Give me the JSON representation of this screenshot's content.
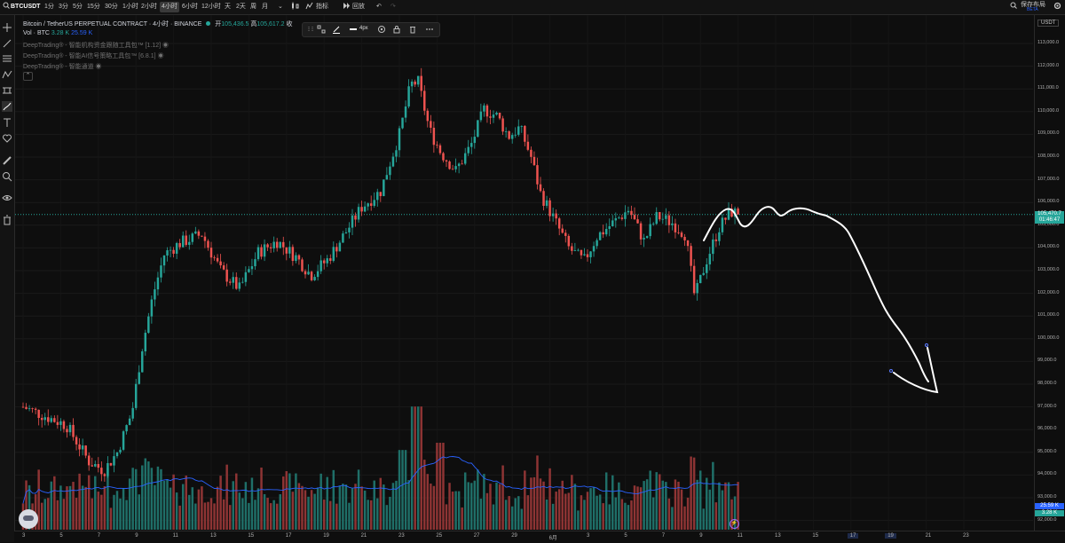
{
  "topbar": {
    "symbol": "BTCUSDT",
    "intervals": [
      "1分",
      "3分",
      "5分",
      "15分",
      "30分",
      "1小时",
      "2小时",
      "4小时",
      "6小时",
      "12小时",
      "天",
      "2天",
      "周",
      "月"
    ],
    "active_interval": "4小时",
    "indicators_label": "指标",
    "replay_label": "回放",
    "save_label": "保存布局",
    "save_sub": "BETA"
  },
  "legend": {
    "title": "Bitcoin / TetherUS PERPETUAL CONTRACT · 4小时 · BINANCE",
    "open_label": "开",
    "open_value": "105,436.5",
    "high_label": "高",
    "high_value": "105,617.2",
    "close_label": "收",
    "vol_label": "Vol · BTC",
    "vol_value_1": "3.28 K",
    "vol_value_2": "25.59 K",
    "ind1": "DeepTrading® - 智能机构资金跟随工具包™ [1.12]",
    "ind2": "DeepTrading® - 智能AI信号策略工具包™ [6.8.1]",
    "ind3": "DeepTrading® - 智能通道"
  },
  "drawbar": {
    "width_label": "4px"
  },
  "right_axis": {
    "currency": "USDT"
  },
  "badges": {
    "price": "105,470.7",
    "countdown": "01:46:47",
    "vol1": "25.59 K",
    "vol2": "3.28 K"
  },
  "colors": {
    "up": "#26a69a",
    "down": "#ef5350",
    "bg": "#0e0e0e",
    "drawing": "#ffffff"
  },
  "chart_data": {
    "type": "candlestick",
    "y_ticks": [
      92000,
      93000,
      94000,
      95000,
      96000,
      97000,
      98000,
      99000,
      100000,
      101000,
      102000,
      103000,
      104000,
      105000,
      106000,
      107000,
      108000,
      109000,
      110000,
      111000,
      112000,
      113000
    ],
    "y_tick_labels": [
      "92,000.0",
      "93,000.0",
      "94,000.0",
      "95,000.0",
      "96,000.0",
      "97,000.0",
      "98,000.0",
      "99,000.0",
      "100,000.0",
      "101,000.0",
      "102,000.0",
      "103,000.0",
      "104,000.0",
      "105,000.0",
      "106,000.0",
      "107,000.0",
      "108,000.0",
      "109,000.0",
      "110,000.0",
      "111,000.0",
      "112,000.0",
      "113,000.0"
    ],
    "x_tick_labels": [
      "3",
      "5",
      "7",
      "9",
      "11",
      "13",
      "15",
      "17",
      "19",
      "21",
      "23",
      "25",
      "27",
      "29",
      "6月",
      "3",
      "5",
      "7",
      "9",
      "11",
      "13",
      "15",
      "17",
      "19",
      "21",
      "23"
    ],
    "highlight_x_labels": [
      "17",
      "19"
    ],
    "highlight_y_range": [
      97000,
      99800
    ],
    "last_price": 105470.7,
    "ylim": [
      91600,
      113800
    ],
    "candles_per_day": 6,
    "days_shown": 62.5,
    "key_levels": [
      {
        "day": 0,
        "price": 97000
      },
      {
        "day": 2.3,
        "price": 96200
      },
      {
        "day": 3.5,
        "price": 94600
      },
      {
        "day": 4.3,
        "price": 94200
      },
      {
        "day": 5.0,
        "price": 95000
      },
      {
        "day": 5.8,
        "price": 96800
      },
      {
        "day": 6.3,
        "price": 99500
      },
      {
        "day": 6.9,
        "price": 101900
      },
      {
        "day": 7.5,
        "price": 103700
      },
      {
        "day": 8.3,
        "price": 104200
      },
      {
        "day": 9.5,
        "price": 104600
      },
      {
        "day": 10.5,
        "price": 103000
      },
      {
        "day": 11.5,
        "price": 102200
      },
      {
        "day": 12.5,
        "price": 103800
      },
      {
        "day": 13.5,
        "price": 104300
      },
      {
        "day": 14.5,
        "price": 103600
      },
      {
        "day": 15.3,
        "price": 102800
      },
      {
        "day": 16.2,
        "price": 103500
      },
      {
        "day": 17.0,
        "price": 104500
      },
      {
        "day": 18.0,
        "price": 105800
      },
      {
        "day": 19.0,
        "price": 106500
      },
      {
        "day": 20.0,
        "price": 109000
      },
      {
        "day": 20.6,
        "price": 111200
      },
      {
        "day": 21.0,
        "price": 111300
      },
      {
        "day": 21.6,
        "price": 109200
      },
      {
        "day": 22.2,
        "price": 108200
      },
      {
        "day": 23.0,
        "price": 107400
      },
      {
        "day": 23.8,
        "price": 108500
      },
      {
        "day": 24.5,
        "price": 110100
      },
      {
        "day": 25.2,
        "price": 109800
      },
      {
        "day": 25.8,
        "price": 108900
      },
      {
        "day": 26.4,
        "price": 109300
      },
      {
        "day": 27.0,
        "price": 108000
      },
      {
        "day": 27.5,
        "price": 106400
      },
      {
        "day": 28.2,
        "price": 105300
      },
      {
        "day": 29.0,
        "price": 104000
      },
      {
        "day": 29.8,
        "price": 103400
      },
      {
        "day": 30.5,
        "price": 104500
      },
      {
        "day": 31.5,
        "price": 105200
      },
      {
        "day": 32.2,
        "price": 105700
      },
      {
        "day": 33.0,
        "price": 104300
      },
      {
        "day": 33.7,
        "price": 105400
      },
      {
        "day": 34.5,
        "price": 105100
      },
      {
        "day": 35.2,
        "price": 104600
      },
      {
        "day": 35.7,
        "price": 101800
      },
      {
        "day": 36.3,
        "price": 103400
      },
      {
        "day": 37.0,
        "price": 104900
      },
      {
        "day": 37.6,
        "price": 105600
      },
      {
        "day": 38.1,
        "price": 105470
      }
    ],
    "volume_axis_max": 18000
  }
}
